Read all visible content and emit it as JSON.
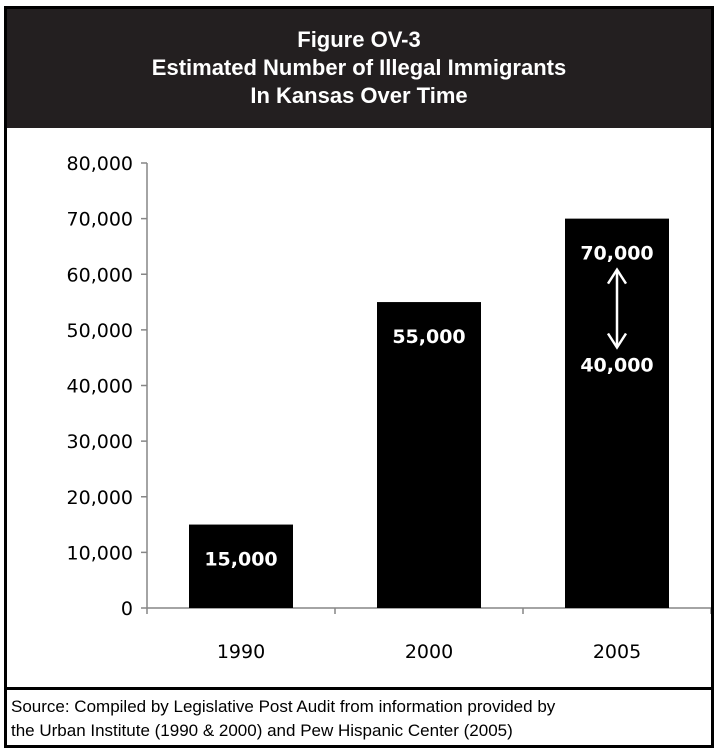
{
  "figure": {
    "label": "Figure OV-3",
    "title_line1": "Estimated Number of Illegal Immigrants",
    "title_line2": "In Kansas Over Time"
  },
  "source": {
    "line1": "Source:  Compiled by Legislative Post Audit from information provided by",
    "line2": "the Urban Institute (1990 & 2000) and Pew Hispanic Center (2005)"
  },
  "colors": {
    "bar": "#000000",
    "header": "#231f20",
    "label": "#ffffff"
  },
  "chart_data": {
    "type": "bar",
    "categories": [
      "1990",
      "2000",
      "2005"
    ],
    "values": [
      15000,
      55000,
      70000
    ],
    "data_labels": [
      "15,000",
      "55,000",
      "70,000"
    ],
    "range_note": {
      "category": "2005",
      "low": 40000,
      "high": 70000,
      "low_label": "40,000",
      "high_label": "70,000"
    },
    "ylim": [
      0,
      80000
    ],
    "yticks": [
      0,
      10000,
      20000,
      30000,
      40000,
      50000,
      60000,
      70000,
      80000
    ],
    "ytick_labels": [
      "0",
      "10,000",
      "20,000",
      "30,000",
      "40,000",
      "50,000",
      "60,000",
      "70,000",
      "80,000"
    ],
    "grid": false,
    "legend": "none"
  }
}
